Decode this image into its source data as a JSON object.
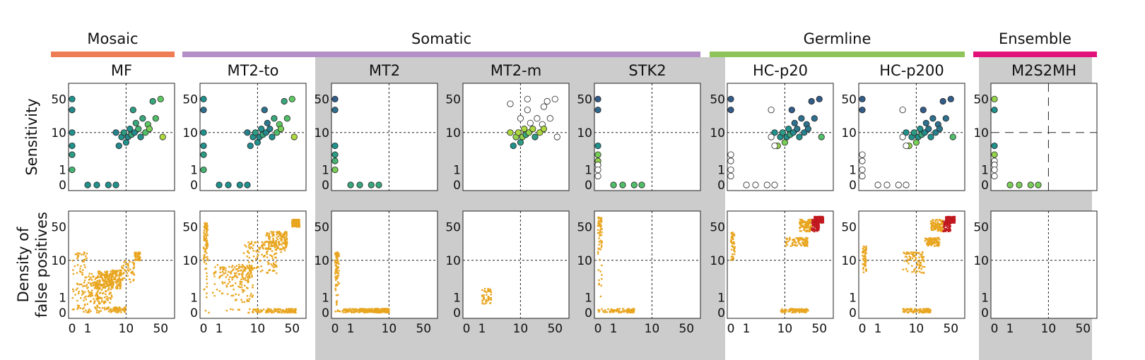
{
  "groups": [
    {
      "name": "Mosaic",
      "color": "#ee7d55",
      "start": 0,
      "end": 0
    },
    {
      "name": "Somatic",
      "color": "#b48fc7",
      "start": 1,
      "end": 4
    },
    {
      "name": "Germline",
      "color": "#8ec459",
      "start": 5,
      "end": 6
    },
    {
      "name": "Ensemble",
      "color": "#e1137a",
      "start": 7,
      "end": 7
    }
  ],
  "columns": [
    "MF",
    "MT2-to",
    "MT2",
    "MT2-m",
    "STK2",
    "HC-p20",
    "HC-p200",
    "M2S2MH"
  ],
  "shaded_columns": [
    2,
    3,
    4,
    7
  ],
  "row_labels": {
    "sensitivity": [
      "Sensitivity"
    ],
    "false_positives": [
      "Density of",
      "false positives"
    ]
  },
  "axis": {
    "scale": "log1p",
    "ticks": [
      0,
      1,
      10,
      50
    ],
    "x_ticks": [
      0,
      1,
      10,
      50
    ],
    "y_ticks_top": [
      0,
      1,
      10,
      50
    ],
    "y_ticks_bottom": [
      0,
      1,
      10,
      50
    ],
    "threshold": 10
  },
  "colors": {
    "viridis_low": "#31688e",
    "viridis_high": "#e4e32a",
    "false_positive_low": "#e8a51f",
    "false_positive_high": "#c0191f",
    "shade": "#cccccc"
  },
  "chart_data": [
    {
      "panel": "MF",
      "row": "sensitivity",
      "type": "scatter",
      "x": [
        0,
        0,
        0,
        0,
        0,
        0,
        1,
        2,
        4,
        6,
        6,
        7,
        8,
        9,
        10,
        11,
        12,
        13,
        14,
        15,
        16,
        18,
        20,
        22,
        25,
        28,
        30,
        35,
        40,
        50,
        55
      ],
      "y": [
        50,
        30,
        10,
        5,
        3,
        1,
        0,
        0,
        0,
        0,
        10,
        5,
        8,
        10,
        6,
        8,
        12,
        9,
        30,
        10,
        16,
        12,
        8,
        20,
        10,
        15,
        12,
        45,
        20,
        50,
        8
      ],
      "color_value": [
        0.5,
        0.45,
        0.5,
        0.5,
        0.55,
        0.65,
        0.5,
        0.5,
        0.5,
        0.5,
        0.4,
        0.45,
        0.5,
        0.55,
        0.5,
        0.45,
        0.5,
        0.6,
        0.55,
        0.45,
        0.6,
        0.65,
        0.5,
        0.6,
        0.7,
        0.75,
        0.8,
        0.6,
        0.7,
        0.75,
        0.9
      ],
      "ylim": [
        0,
        80
      ],
      "xlim": [
        0,
        80
      ]
    },
    {
      "panel": "MT2-to",
      "row": "sensitivity",
      "type": "scatter",
      "x": [
        0,
        0,
        0,
        0,
        0,
        0,
        1,
        2,
        4,
        6,
        6,
        7,
        8,
        9,
        10,
        11,
        12,
        13,
        14,
        15,
        16,
        18,
        20,
        22,
        25,
        28,
        30,
        35,
        40,
        50,
        55
      ],
      "y": [
        50,
        30,
        10,
        5,
        3,
        1,
        0,
        0,
        0,
        0,
        10,
        5,
        8,
        10,
        6,
        8,
        12,
        9,
        30,
        10,
        16,
        12,
        8,
        20,
        10,
        15,
        12,
        45,
        20,
        50,
        8
      ],
      "color_value": [
        0.5,
        0.3,
        0.5,
        0.5,
        0.55,
        0.65,
        0.5,
        0.5,
        0.5,
        0.5,
        0.4,
        0.45,
        0.5,
        0.55,
        0.5,
        0.45,
        0.5,
        0.6,
        0.3,
        0.45,
        0.35,
        0.4,
        0.5,
        0.6,
        0.7,
        0.75,
        0.8,
        0.6,
        0.7,
        0.75,
        0.9
      ],
      "ylim": [
        0,
        80
      ],
      "xlim": [
        0,
        80
      ]
    },
    {
      "panel": "MT2",
      "row": "sensitivity",
      "type": "scatter",
      "x": [
        0,
        0,
        0,
        0,
        0,
        0,
        1,
        2,
        4,
        6
      ],
      "y": [
        50,
        30,
        5,
        3,
        2,
        1,
        0,
        0,
        0,
        0
      ],
      "color_value": [
        0.2,
        0.3,
        0.5,
        0.55,
        0.65,
        0.8,
        0.6,
        0.6,
        0.6,
        0.6
      ],
      "ylim": [
        0,
        80
      ],
      "xlim": [
        0,
        80
      ]
    },
    {
      "panel": "MT2-m",
      "row": "sensitivity",
      "type": "scatter",
      "x": [
        6,
        7,
        8,
        9,
        10,
        11,
        12,
        13,
        14,
        15,
        16,
        18,
        20,
        22,
        25,
        28,
        30,
        35,
        40,
        50,
        55,
        6,
        10,
        14,
        30
      ],
      "y": [
        10,
        5,
        8,
        10,
        6,
        8,
        12,
        9,
        30,
        10,
        16,
        12,
        8,
        20,
        10,
        15,
        12,
        45,
        20,
        50,
        8,
        40,
        20,
        50,
        35
      ],
      "color_value": [
        0.9,
        0.5,
        0.85,
        0.9,
        0.55,
        0.85,
        0.9,
        0.6,
        -1,
        0.85,
        -1,
        0.9,
        0.55,
        -1,
        0.9,
        -1,
        0.9,
        -1,
        -1,
        -1,
        -1,
        -1,
        -1,
        -1,
        -1
      ],
      "ylim": [
        0,
        80
      ],
      "xlim": [
        0,
        80
      ]
    },
    {
      "panel": "STK2",
      "row": "sensitivity",
      "type": "scatter",
      "x": [
        0,
        0,
        0,
        0,
        0,
        0,
        0,
        0,
        1,
        2,
        4,
        6
      ],
      "y": [
        50,
        30,
        5,
        3,
        2,
        1.5,
        1,
        0.5,
        0,
        0,
        0,
        0
      ],
      "color_value": [
        0.2,
        0.25,
        0.5,
        0.8,
        0.85,
        -1,
        -1,
        -1,
        0.7,
        0.7,
        0.7,
        0.7
      ],
      "ylim": [
        0,
        80
      ],
      "xlim": [
        0,
        80
      ]
    },
    {
      "panel": "HC-p20",
      "row": "sensitivity",
      "type": "scatter",
      "x": [
        0,
        0,
        0,
        0,
        0,
        0,
        1,
        2,
        4,
        6,
        6,
        7,
        8,
        9,
        10,
        11,
        12,
        13,
        14,
        15,
        16,
        18,
        20,
        22,
        25,
        28,
        30,
        35,
        40,
        50,
        55,
        6,
        5,
        5
      ],
      "y": [
        50,
        30,
        3,
        2,
        1,
        0.5,
        0,
        0,
        0,
        0,
        10,
        5,
        8,
        10,
        6,
        8,
        12,
        9,
        30,
        10,
        16,
        12,
        8,
        20,
        10,
        15,
        12,
        45,
        20,
        50,
        8,
        5,
        30,
        8
      ],
      "color_value": [
        0.2,
        0.2,
        -1,
        -1,
        -1,
        -1,
        -1,
        -1,
        -1,
        -1,
        0.5,
        0.85,
        0.5,
        0.55,
        0.8,
        0.5,
        0.5,
        0.6,
        0.2,
        0.45,
        0.3,
        0.35,
        0.5,
        0.3,
        0.4,
        0.3,
        0.35,
        0.2,
        0.3,
        0.2,
        0.7,
        -1,
        -1,
        -1
      ],
      "ylim": [
        0,
        80
      ],
      "xlim": [
        0,
        80
      ]
    },
    {
      "panel": "HC-p200",
      "row": "sensitivity",
      "type": "scatter",
      "x": [
        0,
        0,
        0,
        0,
        0,
        0,
        1,
        2,
        4,
        6,
        6,
        7,
        8,
        9,
        10,
        11,
        12,
        13,
        14,
        15,
        16,
        18,
        20,
        22,
        25,
        28,
        30,
        35,
        40,
        50,
        55,
        6,
        5,
        5
      ],
      "y": [
        50,
        30,
        3,
        2,
        1,
        0.5,
        0,
        0,
        0,
        0,
        10,
        5,
        8,
        10,
        6,
        8,
        12,
        9,
        30,
        10,
        16,
        12,
        8,
        20,
        10,
        15,
        12,
        45,
        20,
        50,
        8,
        5,
        30,
        8
      ],
      "color_value": [
        0.2,
        0.2,
        -1,
        -1,
        -1,
        -1,
        -1,
        -1,
        -1,
        -1,
        0.5,
        0.85,
        0.5,
        0.55,
        0.8,
        0.5,
        0.5,
        0.6,
        0.2,
        0.45,
        0.3,
        0.35,
        0.5,
        0.3,
        0.4,
        0.3,
        0.35,
        0.2,
        0.3,
        0.2,
        0.7,
        -1,
        -1,
        -1
      ],
      "ylim": [
        0,
        80
      ],
      "xlim": [
        0,
        80
      ]
    },
    {
      "panel": "M2S2MH",
      "row": "sensitivity",
      "type": "scatter",
      "x": [
        0,
        0,
        0,
        0,
        0,
        0,
        0,
        0,
        1,
        2,
        4,
        6
      ],
      "y": [
        50,
        30,
        5,
        3,
        2,
        1.5,
        1,
        0.5,
        0,
        0,
        0,
        0
      ],
      "color_value": [
        0.85,
        0.5,
        0.5,
        0.85,
        -1,
        -1,
        -1,
        -1,
        0.8,
        0.8,
        0.8,
        0.8
      ],
      "ylim": [
        0,
        80
      ],
      "xlim": [
        0,
        80
      ]
    },
    {
      "panel": "MF",
      "row": "false_positives",
      "type": "scatter",
      "clusters": [
        {
          "x": [
            0,
            3
          ],
          "y": [
            0,
            3
          ],
          "density": 0.1
        },
        {
          "x": [
            0,
            1
          ],
          "y": [
            0,
            15
          ],
          "density": 0.05
        },
        {
          "x": [
            1,
            5
          ],
          "y": [
            0.5,
            5
          ],
          "density": 0.15
        },
        {
          "x": [
            2,
            8
          ],
          "y": [
            2,
            6
          ],
          "density": 0.2
        },
        {
          "x": [
            0,
            10
          ],
          "y": [
            0,
            0.3
          ],
          "density": 0.1
        },
        {
          "x": [
            8,
            15
          ],
          "y": [
            3,
            10
          ],
          "density": 0.05
        },
        {
          "x": [
            15,
            20
          ],
          "y": [
            10,
            15
          ],
          "density": 0.05
        }
      ],
      "ylim": [
        0,
        80
      ],
      "xlim": [
        0,
        80
      ]
    },
    {
      "panel": "MT2-to",
      "row": "false_positives",
      "type": "scatter",
      "clusters": [
        {
          "x": [
            0,
            0.2
          ],
          "y": [
            0,
            60
          ],
          "density": 0.1
        },
        {
          "x": [
            0,
            60
          ],
          "y": [
            0,
            0.2
          ],
          "density": 0.15
        },
        {
          "x": [
            0.5,
            8
          ],
          "y": [
            0.5,
            8
          ],
          "density": 0.2
        },
        {
          "x": [
            5,
            25
          ],
          "y": [
            5,
            25
          ],
          "density": 0.15
        },
        {
          "x": [
            15,
            40
          ],
          "y": [
            15,
            40
          ],
          "density": 0.15
        },
        {
          "x": [
            50,
            70
          ],
          "y": [
            50,
            70
          ],
          "density": 0.3
        }
      ],
      "ylim": [
        0,
        80
      ],
      "xlim": [
        0,
        80
      ]
    },
    {
      "panel": "MT2",
      "row": "false_positives",
      "type": "scatter",
      "clusters": [
        {
          "x": [
            0,
            0.2
          ],
          "y": [
            0,
            15
          ],
          "density": 0.1
        },
        {
          "x": [
            0,
            10
          ],
          "y": [
            0,
            0.2
          ],
          "density": 0.3
        }
      ],
      "ylim": [
        0,
        80
      ],
      "xlim": [
        0,
        80
      ]
    },
    {
      "panel": "MT2-m",
      "row": "false_positives",
      "type": "scatter",
      "clusters": [
        {
          "x": [
            1,
            2
          ],
          "y": [
            0.5,
            2
          ],
          "density": 0.05
        }
      ],
      "ylim": [
        0,
        80
      ],
      "xlim": [
        0,
        80
      ]
    },
    {
      "panel": "STK2",
      "row": "false_positives",
      "type": "scatter",
      "clusters": [
        {
          "x": [
            0,
            0.2
          ],
          "y": [
            0,
            80
          ],
          "density": 0.08
        },
        {
          "x": [
            0,
            4
          ],
          "y": [
            0,
            0.2
          ],
          "density": 0.1
        }
      ],
      "ylim": [
        0,
        80
      ],
      "xlim": [
        0,
        80
      ]
    },
    {
      "panel": "HC-p20",
      "row": "false_positives",
      "type": "scatter",
      "clusters": [
        {
          "x": [
            0,
            0.2
          ],
          "y": [
            10,
            40
          ],
          "density": 0.05
        },
        {
          "x": [
            8,
            30
          ],
          "y": [
            0,
            0.2
          ],
          "density": 0.1
        },
        {
          "x": [
            10,
            30
          ],
          "y": [
            20,
            30
          ],
          "density": 0.1
        },
        {
          "x": [
            20,
            50
          ],
          "y": [
            40,
            70
          ],
          "density": 0.2
        },
        {
          "x": [
            40,
            60
          ],
          "y": [
            60,
            80
          ],
          "density": 0.4
        }
      ],
      "ylim": [
        0,
        80
      ],
      "xlim": [
        0,
        80
      ]
    },
    {
      "panel": "HC-p200",
      "row": "false_positives",
      "type": "scatter",
      "clusters": [
        {
          "x": [
            0,
            0.2
          ],
          "y": [
            5,
            20
          ],
          "density": 0.05
        },
        {
          "x": [
            5,
            20
          ],
          "y": [
            0,
            0.2
          ],
          "density": 0.1
        },
        {
          "x": [
            5,
            15
          ],
          "y": [
            5,
            15
          ],
          "density": 0.1
        },
        {
          "x": [
            15,
            30
          ],
          "y": [
            20,
            30
          ],
          "density": 0.1
        },
        {
          "x": [
            20,
            50
          ],
          "y": [
            40,
            70
          ],
          "density": 0.2
        },
        {
          "x": [
            40,
            60
          ],
          "y": [
            60,
            80
          ],
          "density": 0.4
        }
      ],
      "ylim": [
        0,
        80
      ],
      "xlim": [
        0,
        80
      ]
    },
    {
      "panel": "M2S2MH",
      "row": "false_positives",
      "type": "scatter",
      "clusters": [],
      "ylim": [
        0,
        80
      ],
      "xlim": [
        0,
        80
      ]
    }
  ]
}
